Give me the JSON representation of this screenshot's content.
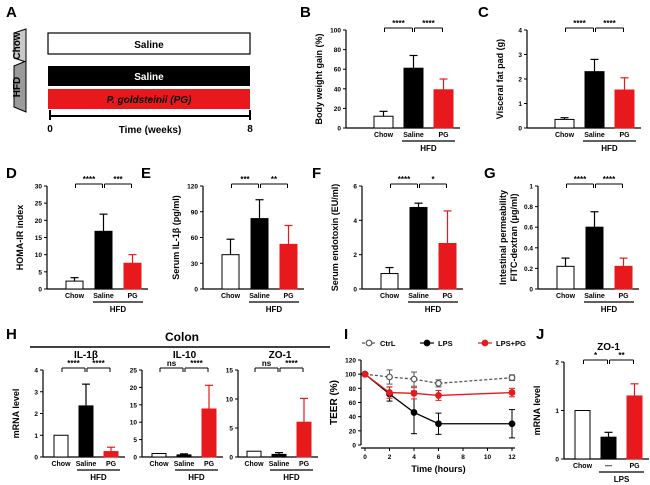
{
  "colors": {
    "chow": "#ffffff",
    "saline": "#000000",
    "pg": "#e8191c",
    "axis": "#000000"
  },
  "panelA": {
    "letter": "A",
    "chow_label": "Chow",
    "hfd_label": "HFD",
    "bars": [
      "Saline",
      "Saline",
      "P. goldsteinii (PG)"
    ],
    "t_start": "0",
    "t_end": "8",
    "xlabel": "Time (weeks)"
  },
  "chart_data": [
    {
      "id": "B",
      "type": "bar",
      "ylabel": "Body weight gain (%)",
      "ylim": [
        0,
        100
      ],
      "yticks": [
        0,
        20,
        40,
        60,
        80,
        100
      ],
      "categories": [
        "Chow",
        "Saline",
        "PG"
      ],
      "group_label": "HFD",
      "values": [
        12,
        61,
        39
      ],
      "errors": [
        5,
        13,
        11
      ],
      "significance": [
        {
          "from": 0,
          "to": 1,
          "label": "****"
        },
        {
          "from": 1,
          "to": 2,
          "label": "****"
        }
      ]
    },
    {
      "id": "C",
      "type": "bar",
      "ylabel": "Visceral fat pad (g)",
      "ylim": [
        0,
        4
      ],
      "yticks": [
        0,
        1,
        2,
        3,
        4
      ],
      "categories": [
        "Chow",
        "Saline",
        "PG"
      ],
      "group_label": "HFD",
      "values": [
        0.35,
        2.3,
        1.55
      ],
      "errors": [
        0.07,
        0.5,
        0.5
      ],
      "significance": [
        {
          "from": 0,
          "to": 1,
          "label": "****"
        },
        {
          "from": 1,
          "to": 2,
          "label": "****"
        }
      ]
    },
    {
      "id": "D",
      "type": "bar",
      "ylabel": "HOMA-IR index",
      "ylim": [
        0,
        30
      ],
      "yticks": [
        0,
        5,
        10,
        15,
        20,
        25,
        30
      ],
      "categories": [
        "Chow",
        "Saline",
        "PG"
      ],
      "group_label": "HFD",
      "values": [
        2.3,
        16.8,
        7.5
      ],
      "errors": [
        1,
        5,
        2.5
      ],
      "significance": [
        {
          "from": 0,
          "to": 1,
          "label": "****"
        },
        {
          "from": 1,
          "to": 2,
          "label": "***"
        }
      ]
    },
    {
      "id": "E",
      "type": "bar",
      "ylabel": "Serum IL-1β (pg/ml)",
      "ylim": [
        0,
        120
      ],
      "yticks": [
        0,
        30,
        60,
        90,
        120
      ],
      "categories": [
        "Chow",
        "Saline",
        "PG"
      ],
      "group_label": "HFD",
      "values": [
        40,
        82,
        52
      ],
      "errors": [
        18,
        22,
        22
      ],
      "significance": [
        {
          "from": 0,
          "to": 1,
          "label": "***"
        },
        {
          "from": 1,
          "to": 2,
          "label": "**"
        }
      ]
    },
    {
      "id": "F",
      "type": "bar",
      "ylabel": "Serum endotoxin (EU/ml)",
      "ylim": [
        0,
        6
      ],
      "yticks": [
        0,
        2,
        4,
        6
      ],
      "categories": [
        "Chow",
        "Saline",
        "PG"
      ],
      "group_label": "HFD",
      "values": [
        0.9,
        4.75,
        2.65
      ],
      "errors": [
        0.35,
        0.25,
        1.9
      ],
      "significance": [
        {
          "from": 0,
          "to": 1,
          "label": "****"
        },
        {
          "from": 1,
          "to": 2,
          "label": "*"
        }
      ]
    },
    {
      "id": "G",
      "type": "bar",
      "ylabel": "Intestinal permeability",
      "ylabel2": "FITC-dextran (μg/ml)",
      "ylim": [
        0,
        1.0
      ],
      "yticks": [
        0.0,
        0.2,
        0.4,
        0.6,
        0.8,
        1.0
      ],
      "categories": [
        "Chow",
        "Saline",
        "PG"
      ],
      "group_label": "HFD",
      "values": [
        0.22,
        0.6,
        0.22
      ],
      "errors": [
        0.08,
        0.15,
        0.08
      ],
      "significance": [
        {
          "from": 0,
          "to": 1,
          "label": "****"
        },
        {
          "from": 1,
          "to": 2,
          "label": "****"
        }
      ]
    },
    {
      "id": "H1",
      "type": "bar",
      "title": "IL-1β",
      "ylabel": "mRNA level",
      "ylim": [
        0,
        4
      ],
      "yticks": [
        0,
        1,
        2,
        3,
        4
      ],
      "categories": [
        "Chow",
        "Saline",
        "PG"
      ],
      "group_label": "HFD",
      "values": [
        1,
        2.35,
        0.25
      ],
      "errors": [
        0,
        1.0,
        0.2
      ],
      "significance": [
        {
          "from": 0,
          "to": 1,
          "label": "****"
        },
        {
          "from": 1,
          "to": 2,
          "label": "****"
        }
      ]
    },
    {
      "id": "H2",
      "type": "bar",
      "title": "IL-10",
      "ylim": [
        0,
        25
      ],
      "yticks": [
        0,
        5,
        10,
        15,
        20,
        25
      ],
      "categories": [
        "Chow",
        "Saline",
        "PG"
      ],
      "group_label": "HFD",
      "values": [
        1,
        0.6,
        13.8
      ],
      "errors": [
        0,
        0.3,
        6.8
      ],
      "significance": [
        {
          "from": 0,
          "to": 1,
          "label": "ns"
        },
        {
          "from": 1,
          "to": 2,
          "label": "****"
        }
      ]
    },
    {
      "id": "H3",
      "type": "bar",
      "title": "ZO-1",
      "ylim": [
        0,
        15
      ],
      "yticks": [
        0,
        5,
        10,
        15
      ],
      "categories": [
        "Chow",
        "Saline",
        "PG"
      ],
      "group_label": "HFD",
      "values": [
        1,
        0.45,
        6
      ],
      "errors": [
        0,
        0.3,
        4.1
      ],
      "significance": [
        {
          "from": 0,
          "to": 1,
          "label": "ns"
        },
        {
          "from": 1,
          "to": 2,
          "label": "****"
        }
      ]
    },
    {
      "id": "I",
      "type": "line",
      "ylabel": "TEER (%)",
      "xlabel": "Time (hours)",
      "xlim": [
        0,
        12
      ],
      "xticks": [
        0,
        2,
        4,
        6,
        8,
        10,
        12
      ],
      "ylim": [
        0,
        120
      ],
      "yticks": [
        0,
        20,
        40,
        60,
        80,
        100,
        120
      ],
      "series": [
        {
          "name": "CtrL",
          "style": "dashed-open",
          "x": [
            0,
            2,
            4,
            6,
            12
          ],
          "y": [
            100,
            96,
            93,
            87,
            95
          ],
          "errors": [
            0,
            10,
            10,
            5,
            4
          ]
        },
        {
          "name": "LPS",
          "style": "solid-black",
          "x": [
            0,
            2,
            4,
            6,
            12
          ],
          "y": [
            100,
            72,
            46,
            30,
            30
          ],
          "errors": [
            0,
            10,
            30,
            15,
            20
          ]
        },
        {
          "name": "LPS+PG",
          "style": "solid-red",
          "x": [
            0,
            2,
            4,
            6,
            12
          ],
          "y": [
            100,
            74,
            73,
            70,
            74
          ],
          "errors": [
            0,
            8,
            8,
            7,
            6
          ]
        }
      ]
    },
    {
      "id": "J",
      "type": "bar",
      "title": "ZO-1",
      "ylabel": "mRNA level",
      "ylim": [
        0,
        2
      ],
      "yticks": [
        0,
        1,
        2
      ],
      "categories": [
        "Chow",
        "—",
        "PG"
      ],
      "group_label": "LPS",
      "values": [
        1,
        0.45,
        1.3
      ],
      "errors": [
        0,
        0.1,
        0.25
      ],
      "significance": [
        {
          "from": 0,
          "to": 1,
          "label": "*"
        },
        {
          "from": 1,
          "to": 2,
          "label": "**"
        }
      ]
    }
  ],
  "panelH": {
    "letter": "H",
    "colon_label": "Colon"
  },
  "letters": {
    "B": "B",
    "C": "C",
    "D": "D",
    "E": "E",
    "F": "F",
    "G": "G",
    "I": "I",
    "J": "J"
  }
}
